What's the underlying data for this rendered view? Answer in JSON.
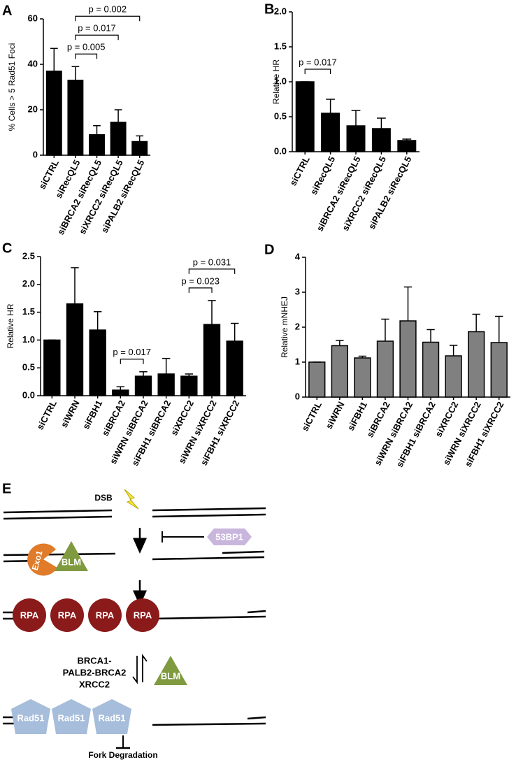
{
  "chart_data": [
    {
      "type": "bar",
      "panel": "A",
      "ylabel": "% Cells > 5 Rad51 Foci",
      "categories": [
        "siCTRL",
        "siRecQL5",
        "siBRCA2 siRecQL5",
        "siXRCC2 siRecQL5",
        "siPALB2 siRecQL5"
      ],
      "values": [
        37,
        33,
        9,
        14.5,
        6
      ],
      "errors": [
        10,
        6,
        4,
        5.5,
        2.5
      ],
      "color": "#000000",
      "ylim": [
        0,
        60
      ],
      "yticks": [
        0,
        20,
        40,
        60
      ],
      "annotations": [
        {
          "text": "p = 0.005",
          "between": [
            "siRecQL5",
            "siBRCA2 siRecQL5"
          ]
        },
        {
          "text": "p = 0.017",
          "between": [
            "siRecQL5",
            "siXRCC2 siRecQL5"
          ]
        },
        {
          "text": "p = 0.002",
          "between": [
            "siRecQL5",
            "siPALB2 siRecQL5"
          ]
        }
      ]
    },
    {
      "type": "bar",
      "panel": "B",
      "ylabel": "Relative HR",
      "categories": [
        "siCTRL",
        "siRecQL5",
        "siBRCA2 siRecQL5",
        "siXRCC2 siRecQL5",
        "siPALB2 siRecQL5"
      ],
      "values": [
        1.0,
        0.55,
        0.37,
        0.33,
        0.16
      ],
      "errors": [
        0,
        0.2,
        0.22,
        0.15,
        0.02
      ],
      "color": "#000000",
      "ylim": [
        0,
        2
      ],
      "yticks": [
        {
          "value": 0,
          "label": "0.0"
        },
        0.5,
        {
          "value": 1,
          "label": "1.0"
        },
        1.5,
        {
          "value": 2,
          "label": "2.0"
        }
      ],
      "annotations": [
        {
          "text": "p = 0.017",
          "between": [
            "siCTRL",
            "siRecQL5"
          ]
        }
      ]
    },
    {
      "type": "bar",
      "panel": "C",
      "ylabel": "Relative HR",
      "categories": [
        "siCTRL",
        "siWRN",
        "siFBH1",
        "siBRCA2",
        "siWRN siBRCA2",
        "siFBH1 siBRCA2",
        "siXRCC2",
        "siWRN siXRCC2",
        "siFBH1 siXRCC2"
      ],
      "values": [
        1.0,
        1.65,
        1.18,
        0.1,
        0.35,
        0.39,
        0.35,
        1.28,
        0.98
      ],
      "errors": [
        0,
        0.65,
        0.33,
        0.06,
        0.08,
        0.28,
        0.04,
        0.43,
        0.32
      ],
      "color": "#000000",
      "ylim": [
        0,
        2.5
      ],
      "yticks": [
        {
          "value": 0,
          "label": "0.0"
        },
        0.5,
        {
          "value": 1,
          "label": "1.0"
        },
        1.5,
        {
          "value": 2,
          "label": "2.0"
        },
        2.5
      ],
      "annotations": [
        {
          "text": "p = 0.017",
          "between": [
            "siBRCA2",
            "siWRN siBRCA2"
          ]
        },
        {
          "text": "p = 0.023",
          "between": [
            "siXRCC2",
            "siWRN siXRCC2"
          ]
        },
        {
          "text": "p = 0.031",
          "between": [
            "siXRCC2",
            "siFBH1 siXRCC2"
          ]
        }
      ]
    },
    {
      "type": "bar",
      "panel": "D",
      "ylabel": "Relative mNHEJ",
      "categories": [
        "siCTRL",
        "siWRN",
        "siFBH1",
        "siBRCA2",
        "siWRN siBRCA2",
        "siFBH1 siBRCA2",
        "siXRCC2",
        "siWRN siXRCC2",
        "siFBH1 siXRCC2"
      ],
      "values": [
        1.0,
        1.47,
        1.12,
        1.6,
        2.18,
        1.57,
        1.18,
        1.87,
        1.56
      ],
      "errors": [
        0,
        0.15,
        0.05,
        0.63,
        0.97,
        0.36,
        0.3,
        0.5,
        0.75
      ],
      "color": "#808080",
      "ylim": [
        0,
        4
      ],
      "yticks": [
        0,
        1,
        2,
        3,
        4
      ],
      "annotations": []
    }
  ],
  "diagram": {
    "panel": "E",
    "dsb": "DSB",
    "inhibitor": "53BP1",
    "exo1": "Exo1",
    "blm_top": "BLM",
    "rpa": [
      "RPA",
      "RPA",
      "RPA",
      "RPA"
    ],
    "mediators": [
      "BRCA1-",
      "PALB2-BRCA2",
      "XRCC2"
    ],
    "blm_bottom": "BLM",
    "rad51": [
      "Rad51",
      "Rad51",
      "Rad51"
    ],
    "outcome": "Fork Degradation"
  }
}
